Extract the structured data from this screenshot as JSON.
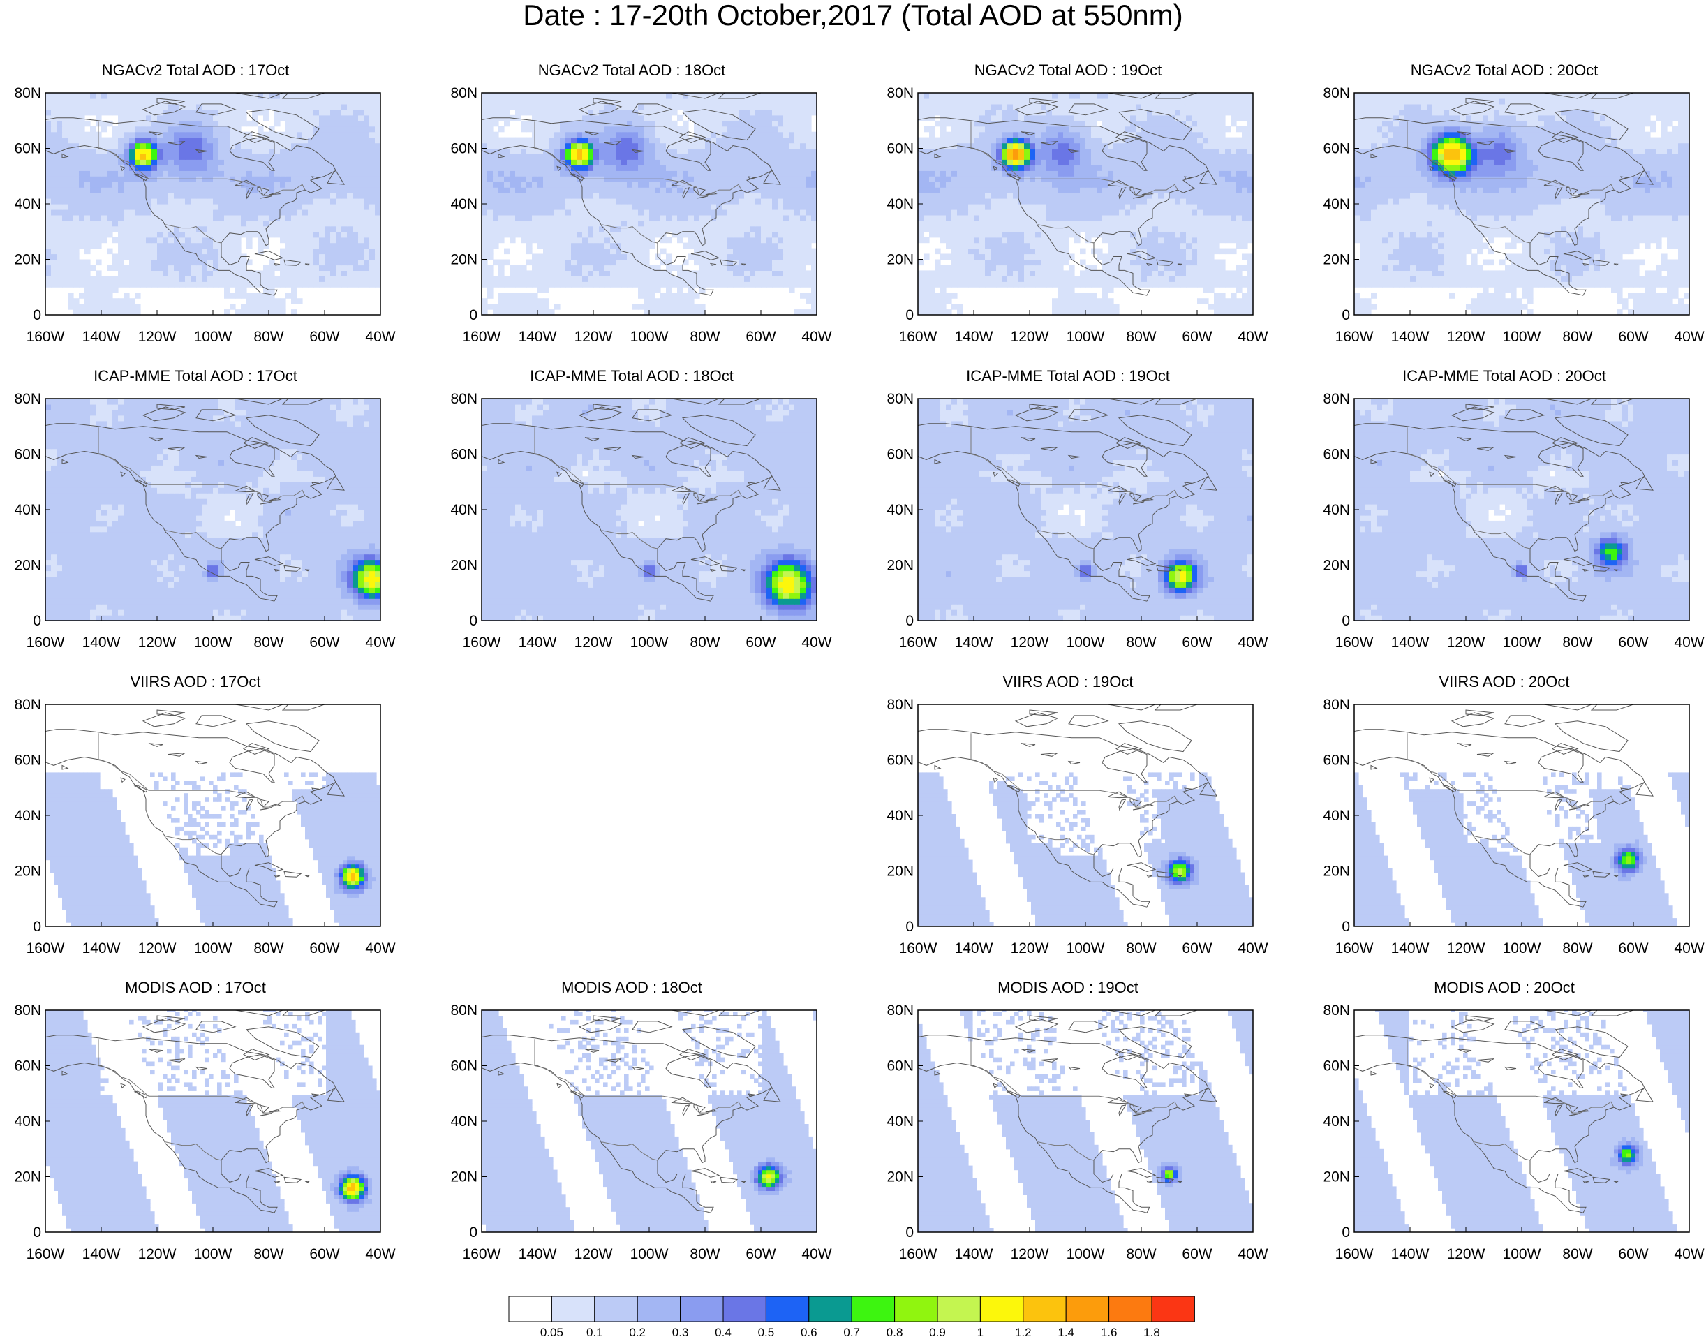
{
  "title": "Date : 17-20th October,2017 (Total AOD at 550nm)",
  "axes": {
    "lat_labels": [
      "80N",
      "60N",
      "40N",
      "20N",
      "0"
    ],
    "lon_labels": [
      "160W",
      "140W",
      "120W",
      "100W",
      "80W",
      "60W",
      "40W"
    ]
  },
  "panels": [
    {
      "title": "NGACv2 Total AOD : 17Oct",
      "model": "ngac",
      "day": 17
    },
    {
      "title": "NGACv2 Total AOD : 18Oct",
      "model": "ngac",
      "day": 18
    },
    {
      "title": "NGACv2 Total AOD : 19Oct",
      "model": "ngac",
      "day": 19
    },
    {
      "title": "NGACv2 Total AOD : 20Oct",
      "model": "ngac",
      "day": 20
    },
    {
      "title": "ICAP-MME Total AOD : 17Oct",
      "model": "icap",
      "day": 17
    },
    {
      "title": "ICAP-MME Total AOD : 18Oct",
      "model": "icap",
      "day": 18
    },
    {
      "title": "ICAP-MME Total AOD : 19Oct",
      "model": "icap",
      "day": 19
    },
    {
      "title": "ICAP-MME Total AOD : 20Oct",
      "model": "icap",
      "day": 20
    },
    {
      "title": "VIIRS AOD : 17Oct",
      "model": "viirs",
      "day": 17
    },
    null,
    {
      "title": "VIIRS AOD : 19Oct",
      "model": "viirs",
      "day": 19
    },
    {
      "title": "VIIRS AOD : 20Oct",
      "model": "viirs",
      "day": 20
    },
    {
      "title": "MODIS AOD : 17Oct",
      "model": "modis",
      "day": 17
    },
    {
      "title": "MODIS AOD : 18Oct",
      "model": "modis",
      "day": 18
    },
    {
      "title": "MODIS AOD : 19Oct",
      "model": "modis",
      "day": 19
    },
    {
      "title": "MODIS AOD : 20Oct",
      "model": "modis",
      "day": 20
    }
  ],
  "colorbar": {
    "labels": [
      "0.05",
      "0.1",
      "0.2",
      "0.3",
      "0.4",
      "0.5",
      "0.6",
      "0.7",
      "0.8",
      "0.9",
      "1",
      "1.2",
      "1.4",
      "1.6",
      "1.8"
    ],
    "colors": [
      "#ffffff",
      "#d8e2fa",
      "#bccbf6",
      "#a3b6f3",
      "#8a9cf0",
      "#6a76e6",
      "#1d63f5",
      "#0a9a91",
      "#3df510",
      "#90f50f",
      "#c4f550",
      "#fcf70b",
      "#fcc30d",
      "#fc9c0c",
      "#fc7a10",
      "#fb3614"
    ]
  },
  "map": {
    "lon_range": [
      -160,
      -40
    ],
    "lat_range": [
      0,
      80
    ],
    "coast_color": "#555555",
    "border_color": "#777777"
  }
}
